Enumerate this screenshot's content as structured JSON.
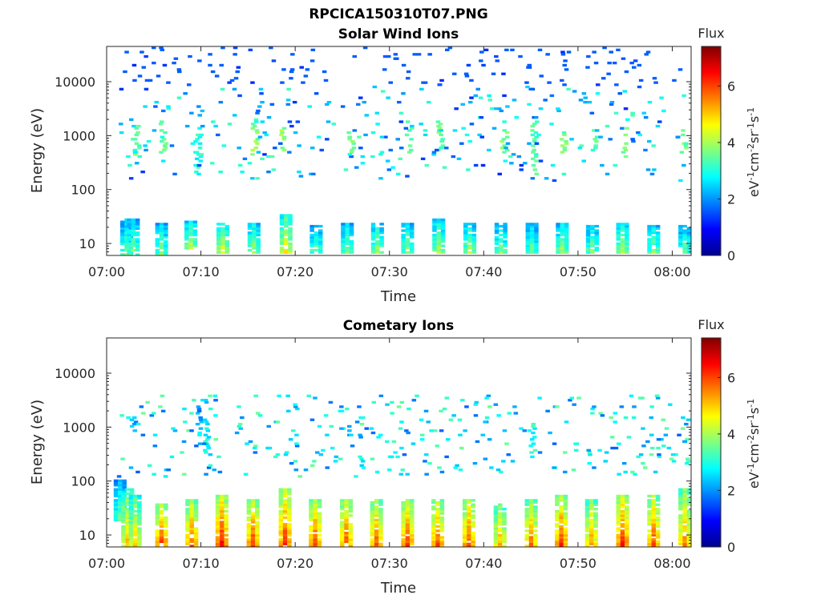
{
  "figure_title": "RPCICA150310T07.PNG",
  "colorbar": {
    "title": "Flux",
    "label": "eV-1cm-2sr-1s-1",
    "range": [
      0,
      7.4
    ],
    "ticks": [
      "0",
      "2",
      "4",
      "6"
    ],
    "tick_values": [
      0,
      2,
      4,
      6
    ],
    "colormap": "jet"
  },
  "chart_data": [
    {
      "type": "heatmap",
      "title": "Solar Wind Ions",
      "xlabel": "Time",
      "ylabel": "Energy (eV)",
      "y_scale": "log",
      "ylim": [
        6,
        45000
      ],
      "xlim": [
        "07:00",
        "08:02"
      ],
      "x_ticks": [
        "07:00",
        "07:10",
        "07:20",
        "07:30",
        "07:40",
        "07:50",
        "08:00"
      ],
      "x_tick_minutes": [
        0,
        10,
        20,
        30,
        40,
        50,
        60
      ],
      "y_ticks": [
        "10",
        "100",
        "1000",
        "10000"
      ],
      "y_tick_values": [
        10,
        100,
        1000,
        10000
      ],
      "bursts": [
        {
          "t": 1.9,
          "lo": 6,
          "hi": 30,
          "v": 3.6
        },
        {
          "t": 2.6,
          "lo": 6,
          "hi": 30,
          "v": 3.9
        },
        {
          "t": 5.6,
          "lo": 6,
          "hi": 25,
          "v": 3.8
        },
        {
          "t": 8.7,
          "lo": 8,
          "hi": 25,
          "v": 4.2
        },
        {
          "t": 12.1,
          "lo": 7,
          "hi": 25,
          "v": 4.6
        },
        {
          "t": 15.4,
          "lo": 7,
          "hi": 25,
          "v": 4.0
        },
        {
          "t": 18.8,
          "lo": 7,
          "hi": 35,
          "v": 4.8
        },
        {
          "t": 22.0,
          "lo": 7,
          "hi": 22,
          "v": 3.7
        },
        {
          "t": 25.3,
          "lo": 7,
          "hi": 25,
          "v": 3.8
        },
        {
          "t": 28.5,
          "lo": 7,
          "hi": 25,
          "v": 4.0
        },
        {
          "t": 31.7,
          "lo": 7,
          "hi": 25,
          "v": 3.9
        },
        {
          "t": 35.0,
          "lo": 7,
          "hi": 30,
          "v": 4.1
        },
        {
          "t": 38.3,
          "lo": 7,
          "hi": 25,
          "v": 4.0
        },
        {
          "t": 41.6,
          "lo": 7,
          "hi": 25,
          "v": 3.8
        },
        {
          "t": 44.9,
          "lo": 7,
          "hi": 25,
          "v": 3.6
        },
        {
          "t": 48.1,
          "lo": 7,
          "hi": 25,
          "v": 4.0
        },
        {
          "t": 51.3,
          "lo": 7,
          "hi": 22,
          "v": 3.8
        },
        {
          "t": 54.5,
          "lo": 7,
          "hi": 25,
          "v": 4.2
        },
        {
          "t": 57.8,
          "lo": 7,
          "hi": 22,
          "v": 3.9
        },
        {
          "t": 61.1,
          "lo": 7,
          "hi": 22,
          "v": 3.6
        }
      ],
      "high_bursts": [
        {
          "t": 3.0,
          "lo": 400,
          "hi": 1500,
          "v": 3.4
        },
        {
          "t": 5.8,
          "lo": 500,
          "hi": 2000,
          "v": 3.6
        },
        {
          "t": 9.5,
          "lo": 200,
          "hi": 1500,
          "v": 3.0
        },
        {
          "t": 15.5,
          "lo": 400,
          "hi": 2000,
          "v": 3.8
        },
        {
          "t": 18.4,
          "lo": 500,
          "hi": 1500,
          "v": 3.9
        },
        {
          "t": 25.7,
          "lo": 400,
          "hi": 1500,
          "v": 3.5
        },
        {
          "t": 31.9,
          "lo": 500,
          "hi": 1500,
          "v": 3.4
        },
        {
          "t": 35.2,
          "lo": 500,
          "hi": 2000,
          "v": 3.6
        },
        {
          "t": 42.0,
          "lo": 500,
          "hi": 1500,
          "v": 3.8
        },
        {
          "t": 45.2,
          "lo": 200,
          "hi": 2000,
          "v": 3.3
        },
        {
          "t": 48.3,
          "lo": 500,
          "hi": 1500,
          "v": 3.6
        },
        {
          "t": 51.6,
          "lo": 500,
          "hi": 1500,
          "v": 3.4
        },
        {
          "t": 54.7,
          "lo": 400,
          "hi": 1500,
          "v": 3.5
        },
        {
          "t": 61.0,
          "lo": 500,
          "hi": 1500,
          "v": 3.5
        }
      ],
      "scatter_seed": 7,
      "scatter_count": 420,
      "scatter_energy_range": [
        150,
        45000
      ],
      "scatter_value_range": [
        1.2,
        3.4
      ]
    },
    {
      "type": "heatmap",
      "title": "Cometary Ions",
      "xlabel": "Time",
      "ylabel": "Energy (eV)",
      "y_scale": "log",
      "ylim": [
        6,
        45000
      ],
      "xlim": [
        "07:00",
        "08:02"
      ],
      "x_ticks": [
        "07:00",
        "07:10",
        "07:20",
        "07:30",
        "07:40",
        "07:50",
        "08:00"
      ],
      "x_tick_minutes": [
        0,
        10,
        20,
        30,
        40,
        50,
        60
      ],
      "y_ticks": [
        "10",
        "100",
        "1000",
        "10000"
      ],
      "y_tick_values": [
        10,
        100,
        1000,
        10000
      ],
      "bursts": [
        {
          "t": 1.2,
          "lo": 20,
          "hi": 110,
          "v": 3.6
        },
        {
          "t": 2.0,
          "lo": 6,
          "hi": 80,
          "v": 5.2
        },
        {
          "t": 2.8,
          "lo": 6,
          "hi": 60,
          "v": 5.0
        },
        {
          "t": 5.6,
          "lo": 6,
          "hi": 40,
          "v": 6.3
        },
        {
          "t": 8.8,
          "lo": 6,
          "hi": 50,
          "v": 6.0
        },
        {
          "t": 12.0,
          "lo": 6,
          "hi": 60,
          "v": 6.6
        },
        {
          "t": 15.3,
          "lo": 6,
          "hi": 50,
          "v": 6.3
        },
        {
          "t": 18.7,
          "lo": 6,
          "hi": 80,
          "v": 6.4
        },
        {
          "t": 21.9,
          "lo": 6,
          "hi": 50,
          "v": 6.2
        },
        {
          "t": 25.2,
          "lo": 6,
          "hi": 50,
          "v": 6.1
        },
        {
          "t": 28.4,
          "lo": 6,
          "hi": 50,
          "v": 6.0
        },
        {
          "t": 31.7,
          "lo": 6,
          "hi": 50,
          "v": 6.2
        },
        {
          "t": 34.9,
          "lo": 6,
          "hi": 50,
          "v": 6.1
        },
        {
          "t": 38.2,
          "lo": 6,
          "hi": 50,
          "v": 6.2
        },
        {
          "t": 41.5,
          "lo": 6,
          "hi": 40,
          "v": 5.4
        },
        {
          "t": 44.8,
          "lo": 6,
          "hi": 50,
          "v": 5.8
        },
        {
          "t": 48.0,
          "lo": 6,
          "hi": 60,
          "v": 6.3
        },
        {
          "t": 51.2,
          "lo": 6,
          "hi": 50,
          "v": 5.6
        },
        {
          "t": 54.5,
          "lo": 6,
          "hi": 60,
          "v": 6.4
        },
        {
          "t": 57.8,
          "lo": 6,
          "hi": 60,
          "v": 6.1
        },
        {
          "t": 61.1,
          "lo": 6,
          "hi": 80,
          "v": 5.6
        }
      ],
      "high_bursts": [
        {
          "t": 2.6,
          "lo": 700,
          "hi": 1500,
          "v": 2.2
        },
        {
          "t": 9.6,
          "lo": 1000,
          "hi": 2500,
          "v": 2.0
        },
        {
          "t": 10.4,
          "lo": 300,
          "hi": 1500,
          "v": 2.8
        },
        {
          "t": 45.0,
          "lo": 300,
          "hi": 1200,
          "v": 3.0
        }
      ],
      "scatter_seed": 21,
      "scatter_count": 330,
      "scatter_energy_range": [
        120,
        4000
      ],
      "scatter_value_range": [
        1.6,
        3.6
      ]
    }
  ]
}
